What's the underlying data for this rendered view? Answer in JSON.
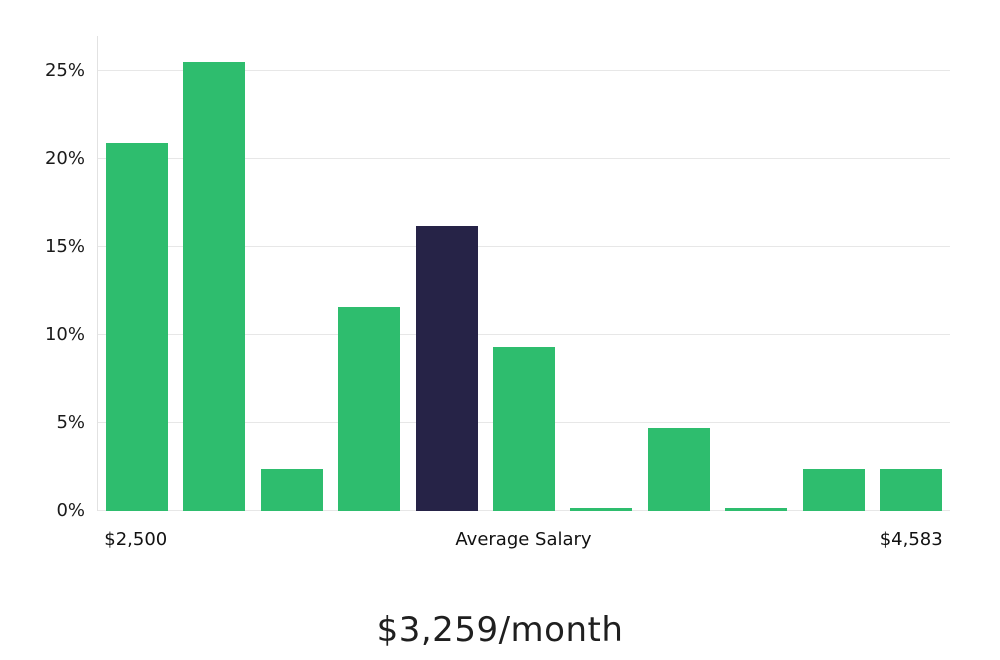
{
  "chart_data": {
    "type": "bar",
    "title": "$3,259/month",
    "ylim": [
      0,
      27
    ],
    "grid": true,
    "y_ticks": [
      {
        "label": "0%",
        "value": 0
      },
      {
        "label": "5%",
        "value": 5
      },
      {
        "label": "10%",
        "value": 10
      },
      {
        "label": "15%",
        "value": 15
      },
      {
        "label": "20%",
        "value": 20
      },
      {
        "label": "25%",
        "value": 25
      }
    ],
    "values": [
      20.9,
      25.5,
      2.4,
      11.6,
      16.2,
      9.3,
      0.15,
      4.7,
      0.15,
      2.4,
      2.4
    ],
    "highlight_index": 4,
    "x_axis_labels": {
      "left": "$2,500",
      "center": "Average Salary",
      "right": "$4,583"
    },
    "colors": {
      "bar": "#2EBD6E",
      "highlight": "#262347",
      "grid": "#e7e7e7"
    }
  }
}
